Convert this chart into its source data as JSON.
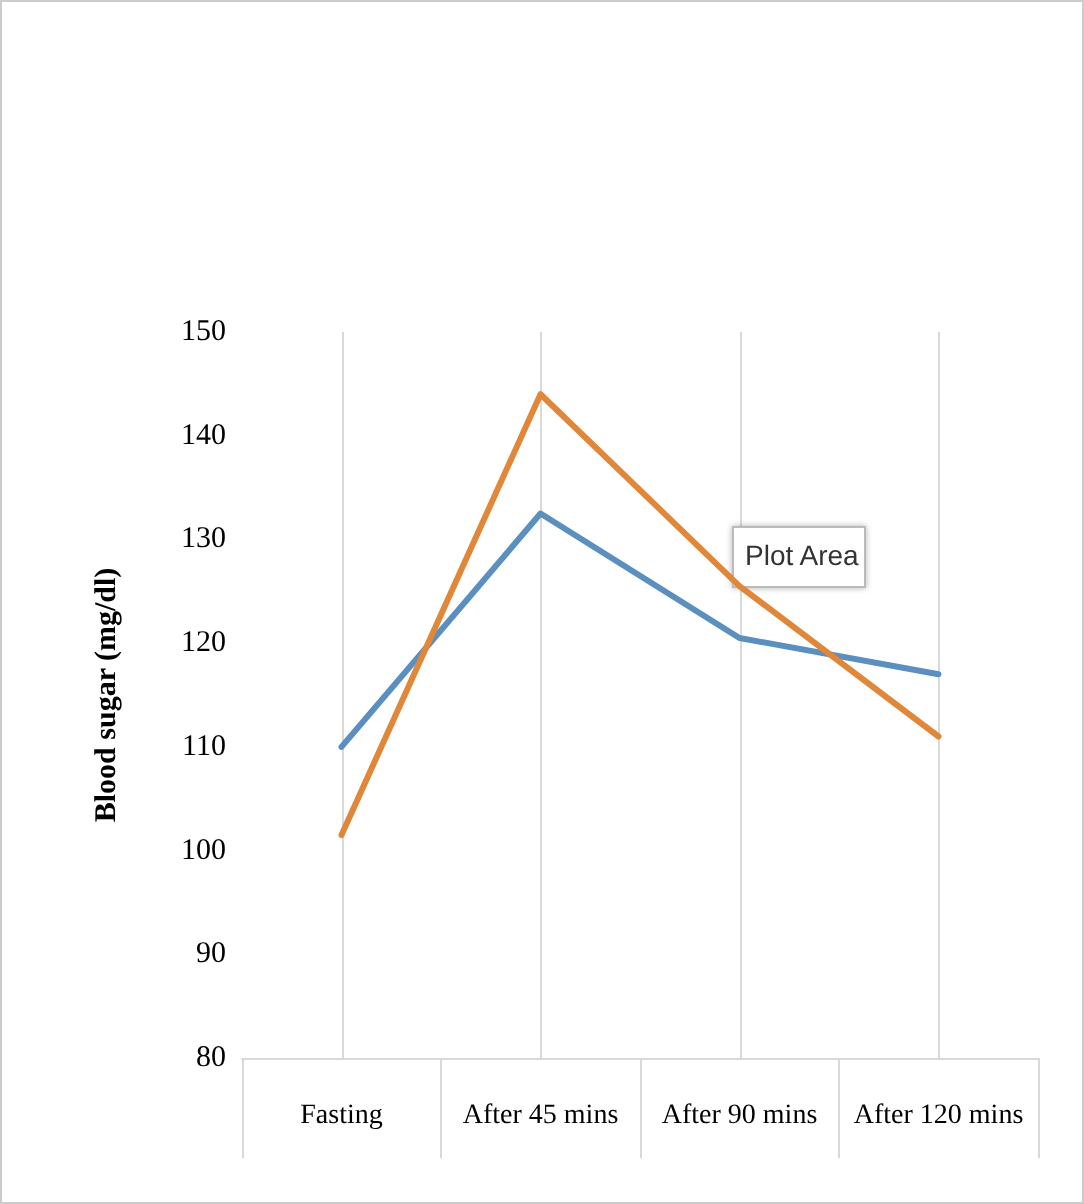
{
  "chart_data": {
    "type": "line",
    "ylabel": "Blood sugar (mg/dl)",
    "categories": [
      "Fasting",
      "After 45 mins",
      "After 90 mins",
      "After 120 mins"
    ],
    "series": [
      {
        "color": "#5b8fbf",
        "values": [
          110,
          132.5,
          120.5,
          117
        ]
      },
      {
        "color": "#e0873a",
        "values": [
          101.5,
          144,
          125.5,
          111
        ]
      }
    ],
    "ylim": [
      80,
      150
    ],
    "yticks": [
      80,
      90,
      100,
      110,
      120,
      130,
      140,
      150
    ],
    "grid": "x",
    "marker": "none",
    "line_style": "solid",
    "annotations": [
      "Plot Area"
    ]
  }
}
